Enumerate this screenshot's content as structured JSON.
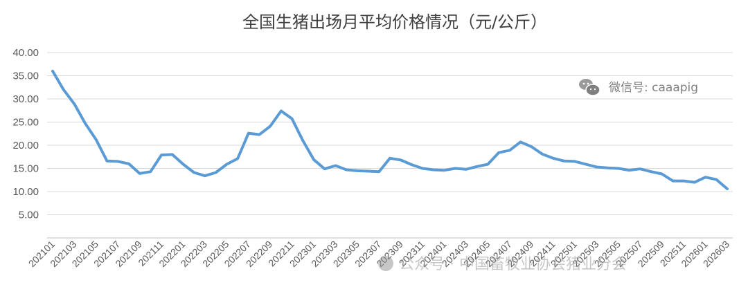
{
  "chart_data": {
    "type": "line",
    "title": "全国生猪出场月平均价格情况（元/公斤）",
    "ylim": [
      0,
      40
    ],
    "yticks": [
      "5.00",
      "10.00",
      "15.00",
      "20.00",
      "25.00",
      "30.00",
      "35.00",
      "40.00"
    ],
    "grid": true,
    "color": "#5b9bd5",
    "x_tick_labels": [
      "202101",
      "202103",
      "202105",
      "202107",
      "202109",
      "202111",
      "202201",
      "202203",
      "202205",
      "202207",
      "202209",
      "202211",
      "202301",
      "202303",
      "202305",
      "202307",
      "202309",
      "202311",
      "202401",
      "202403",
      "202405",
      "202407",
      "202409",
      "202411",
      "202501",
      "202503",
      "202505",
      "202507",
      "202509",
      "202511",
      "202601",
      "202603"
    ],
    "series": [
      {
        "x": [
          "202101",
          "202102",
          "202103",
          "202104",
          "202105",
          "202106",
          "202107",
          "202108",
          "202109",
          "202110",
          "202111",
          "202112",
          "202201",
          "202202",
          "202203",
          "202204",
          "202205",
          "202206",
          "202207",
          "202208",
          "202209",
          "202210",
          "202211",
          "202212",
          "202301",
          "202302",
          "202303",
          "202304",
          "202305",
          "202306",
          "202307",
          "202308",
          "202309",
          "202310",
          "202311",
          "202312",
          "202401",
          "202402",
          "202403",
          "202404",
          "202405",
          "202406",
          "202407",
          "202408",
          "202409",
          "202410",
          "202411",
          "202412",
          "202501",
          "202502",
          "202503",
          "202504",
          "202505",
          "202506",
          "202507",
          "202508",
          "202509",
          "202510",
          "202511",
          "202512",
          "202601",
          "202602",
          "202603"
        ],
        "values": [
          36.0,
          32.0,
          28.9,
          24.7,
          21.2,
          16.6,
          16.5,
          16.0,
          13.9,
          14.3,
          17.9,
          18.0,
          15.9,
          14.1,
          13.4,
          14.1,
          15.9,
          17.1,
          22.6,
          22.3,
          24.1,
          27.4,
          25.7,
          21.0,
          16.9,
          14.9,
          15.6,
          14.7,
          14.5,
          14.4,
          14.3,
          17.2,
          16.8,
          15.8,
          15.0,
          14.7,
          14.6,
          15.0,
          14.8,
          15.4,
          15.9,
          18.4,
          18.9,
          20.7,
          19.7,
          18.1,
          17.2,
          16.6,
          16.5,
          15.9,
          15.3,
          15.1,
          15.0,
          14.6,
          14.9,
          14.3,
          13.8,
          12.3,
          12.3,
          12.0,
          13.1,
          12.6,
          10.6
        ]
      }
    ]
  },
  "watermark": {
    "wechat_label": "微信号: caaapig",
    "bottom_text": "公众号 · 中国畜牧业协会猪业分会"
  }
}
